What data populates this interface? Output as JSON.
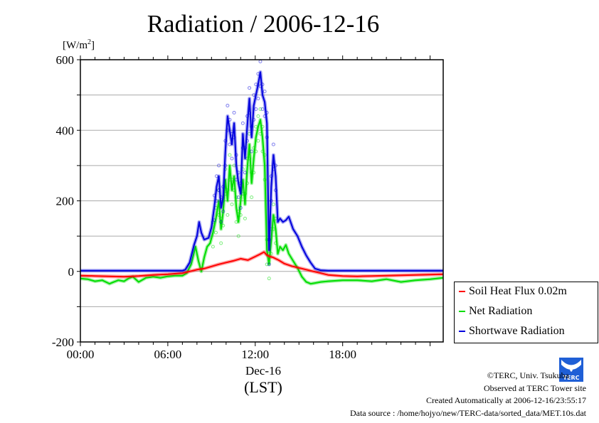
{
  "chart_data": {
    "type": "line",
    "title": "Radiation / 2006-12-16",
    "ylabel_unit": "[W/m2]",
    "xlabel_date": "Dec-16",
    "xlabel_tz": "(LST)",
    "xlim_hours": [
      0,
      24.9
    ],
    "ylim": [
      -200,
      600
    ],
    "yticks": [
      -200,
      0,
      200,
      400,
      600
    ],
    "ytick_labels": [
      "-200",
      "0",
      "200",
      "400",
      "600"
    ],
    "ygrid": [
      -100,
      100,
      300,
      500
    ],
    "xticks_hours": [
      0,
      6,
      12,
      18
    ],
    "xtick_labels": [
      "00:00",
      "06:00",
      "12:00",
      "18:00"
    ],
    "grid": true,
    "legend_position": "right-bottom-outside",
    "series": [
      {
        "name": "Soil Heat Flux 0.02m",
        "color": "#ff0000",
        "x": [
          0,
          1,
          2,
          3,
          4,
          5,
          6,
          7,
          7.5,
          8,
          8.5,
          9,
          9.5,
          10,
          10.5,
          11,
          11.5,
          12,
          12.3,
          12.6,
          12.8,
          13.0,
          13.2,
          13.6,
          14,
          14.5,
          15,
          15.5,
          16,
          16.5,
          17,
          18,
          19,
          20,
          21,
          22,
          23,
          24,
          24.9
        ],
        "y": [
          -12,
          -13,
          -14,
          -15,
          -13,
          -10,
          -8,
          -5,
          0,
          5,
          8,
          14,
          20,
          25,
          30,
          36,
          32,
          42,
          48,
          55,
          46,
          42,
          40,
          32,
          22,
          15,
          10,
          5,
          0,
          -5,
          -10,
          -13,
          -14,
          -13,
          -12,
          -11,
          -10,
          -9,
          -8
        ]
      },
      {
        "name": "Net Radiation",
        "color": "#00dd00",
        "x": [
          0,
          0.5,
          1,
          1.5,
          2,
          2.3,
          2.6,
          3,
          3.3,
          3.6,
          4,
          4.5,
          5,
          5.5,
          6,
          6.5,
          7,
          7.3,
          7.6,
          7.9,
          8.1,
          8.3,
          8.5,
          8.7,
          8.9,
          9.1,
          9.3,
          9.5,
          9.65,
          9.8,
          9.95,
          10.1,
          10.25,
          10.4,
          10.55,
          10.7,
          10.85,
          11.0,
          11.15,
          11.3,
          11.45,
          11.6,
          11.75,
          11.9,
          12.05,
          12.2,
          12.35,
          12.5,
          12.65,
          12.8,
          12.95,
          13.1,
          13.25,
          13.4,
          13.55,
          13.7,
          13.9,
          14.1,
          14.3,
          14.6,
          14.9,
          15.2,
          15.5,
          15.8,
          16.1,
          16.5,
          17,
          18,
          19,
          20,
          21,
          22,
          23,
          24,
          24.9
        ],
        "y": [
          -20,
          -22,
          -28,
          -25,
          -35,
          -30,
          -25,
          -28,
          -20,
          -15,
          -30,
          -18,
          -15,
          -18,
          -14,
          -12,
          -12,
          -5,
          20,
          70,
          30,
          0,
          40,
          70,
          80,
          110,
          150,
          200,
          120,
          170,
          260,
          200,
          300,
          230,
          270,
          180,
          140,
          200,
          260,
          190,
          290,
          360,
          250,
          320,
          380,
          410,
          430,
          380,
          300,
          60,
          20,
          90,
          160,
          120,
          50,
          70,
          60,
          75,
          50,
          30,
          10,
          -15,
          -30,
          -35,
          -33,
          -30,
          -28,
          -25,
          -25,
          -28,
          -22,
          -30,
          -25,
          -22,
          -18
        ]
      },
      {
        "name": "Shortwave Radiation",
        "color": "#0000dd",
        "x": [
          0,
          1,
          2,
          3,
          4,
          5,
          6,
          7,
          7.2,
          7.5,
          7.8,
          8.0,
          8.15,
          8.3,
          8.5,
          8.8,
          9.0,
          9.2,
          9.35,
          9.5,
          9.65,
          9.8,
          9.95,
          10.1,
          10.25,
          10.4,
          10.55,
          10.7,
          10.85,
          11.0,
          11.15,
          11.3,
          11.45,
          11.6,
          11.75,
          11.9,
          12.05,
          12.2,
          12.35,
          12.5,
          12.65,
          12.8,
          12.95,
          13.1,
          13.25,
          13.4,
          13.55,
          13.7,
          13.9,
          14.1,
          14.3,
          14.6,
          14.9,
          15.2,
          15.5,
          15.8,
          16.1,
          16.5,
          17,
          18,
          19,
          20,
          21,
          22,
          23,
          24,
          24.9
        ],
        "y": [
          2,
          2,
          2,
          2,
          2,
          2,
          2,
          2,
          5,
          25,
          75,
          100,
          140,
          110,
          90,
          95,
          125,
          185,
          240,
          270,
          180,
          210,
          340,
          440,
          400,
          360,
          420,
          300,
          250,
          220,
          390,
          320,
          410,
          490,
          380,
          470,
          500,
          530,
          565,
          500,
          480,
          420,
          60,
          240,
          330,
          270,
          140,
          150,
          140,
          145,
          155,
          120,
          100,
          70,
          45,
          25,
          8,
          3,
          2,
          2,
          2,
          2,
          2,
          2,
          2,
          2,
          2
        ]
      }
    ]
  },
  "legend": {
    "items": [
      "Soil Heat Flux 0.02m",
      "Net Radiation",
      "Shortwave Radiation"
    ]
  },
  "credits": {
    "copyright": "©TERC, Univ. Tsukuba",
    "observed": "Observed at TERC Tower site",
    "created": "Created Automatically at 2006-12-16/23:55:17",
    "source": "Data source : /home/hojyo/new/TERC-data/sorted_data/MET.10s.dat",
    "logo_text": "TERC"
  }
}
